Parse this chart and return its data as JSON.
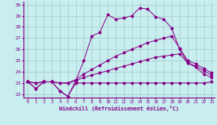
{
  "xlabel": "Windchill (Refroidissement éolien,°C)",
  "xlim": [
    -0.5,
    23.4
  ],
  "ylim": [
    21.7,
    30.3
  ],
  "yticks": [
    22,
    23,
    24,
    25,
    26,
    27,
    28,
    29,
    30
  ],
  "xticks": [
    0,
    1,
    2,
    3,
    4,
    5,
    6,
    7,
    8,
    9,
    10,
    11,
    12,
    13,
    14,
    15,
    16,
    17,
    18,
    19,
    20,
    21,
    22,
    23
  ],
  "bg_color": "#c8eef0",
  "line_color": "#880088",
  "grid_color": "#a0ccc8",
  "series": [
    [
      23.1,
      22.5,
      23.1,
      23.1,
      22.3,
      21.8,
      23.0,
      23.0,
      23.0,
      23.0,
      23.0,
      23.0,
      23.0,
      23.0,
      23.0,
      23.0,
      23.0,
      23.0,
      23.0,
      23.0,
      23.0,
      23.0,
      23.0,
      23.1
    ],
    [
      23.1,
      23.0,
      23.1,
      23.1,
      23.0,
      23.0,
      23.2,
      23.5,
      23.7,
      23.9,
      24.1,
      24.3,
      24.5,
      24.7,
      24.9,
      25.1,
      25.3,
      25.4,
      25.5,
      25.6,
      24.8,
      24.5,
      24.1,
      23.7
    ],
    [
      23.1,
      23.0,
      23.1,
      23.1,
      23.0,
      23.0,
      23.3,
      23.8,
      24.2,
      24.6,
      25.0,
      25.4,
      25.7,
      26.0,
      26.3,
      26.6,
      26.8,
      27.0,
      27.2,
      26.1,
      25.0,
      24.7,
      24.3,
      23.9
    ],
    [
      23.1,
      22.5,
      23.1,
      23.1,
      22.3,
      21.8,
      23.2,
      25.0,
      27.2,
      27.5,
      29.1,
      28.7,
      28.8,
      29.0,
      29.7,
      29.6,
      28.9,
      28.7,
      27.9,
      26.0,
      24.8,
      24.4,
      23.8,
      23.5
    ]
  ]
}
